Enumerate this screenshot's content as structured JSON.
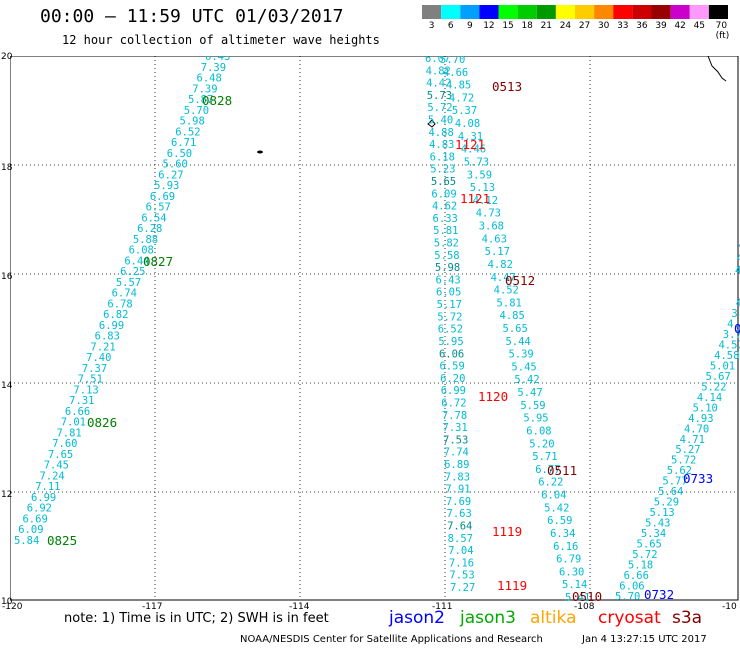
{
  "header": {
    "title": "00:00 – 11:59 UTC 01/03/2017",
    "subtitle": "12 hour collection of altimeter wave heights"
  },
  "colorbar": {
    "labels": [
      "3",
      "6",
      "9",
      "12",
      "15",
      "18",
      "21",
      "24",
      "27",
      "30",
      "33",
      "36",
      "39",
      "42",
      "45",
      "70 (ft)"
    ],
    "colors": [
      "#808080",
      "#00ffff",
      "#00a0ff",
      "#0000ff",
      "#00ff00",
      "#00cc00",
      "#009900",
      "#ffff00",
      "#ffcc00",
      "#ff8800",
      "#ff0000",
      "#cc0000",
      "#990000",
      "#cc00cc",
      "#ff99ff",
      "#000000"
    ]
  },
  "map": {
    "lat_labels": [
      "20",
      "18",
      "16",
      "14",
      "12",
      "10"
    ],
    "lon_labels": [
      "-120",
      "-117",
      "-114",
      "-111",
      "-108",
      "-10"
    ],
    "lon_range": [
      -120,
      -105
    ],
    "lat_range": [
      10,
      20
    ]
  },
  "tracks": {
    "t1": [
      "6.43",
      "7.39",
      "6.48",
      "7.39",
      "5.87",
      "5.70",
      "5.98",
      "6.52",
      "6.71",
      "6.50",
      "5.60",
      "6.27",
      "5.93",
      "6.69",
      "6.57",
      "6.54",
      "6.28",
      "5.88",
      "6.08",
      "6.44",
      "6.25",
      "5.57",
      "6.74",
      "6.78",
      "6.82",
      "6.99",
      "6.83",
      "7.21",
      "7.40",
      "7.37",
      "7.51",
      "7.13",
      "7.31",
      "6.66",
      "7.01",
      "7.81",
      "7.60",
      "7.65",
      "7.45",
      "7.24",
      "7.11",
      "6.99",
      "6.92",
      "6.69",
      "6.09",
      "5.84"
    ],
    "t2": [
      "6.07",
      "4.82",
      "4.42",
      "5.73",
      "5.72",
      "5.40",
      "4.88",
      "4.83",
      "6.18",
      "5.23",
      "5.65",
      "6.09",
      "4.62",
      "6.33",
      "5.81",
      "5.82",
      "5.58",
      "5.98",
      "6.43",
      "6.05",
      "5.17",
      "5.72",
      "6.52",
      "5.95",
      "6.06",
      "6.59",
      "6.20",
      "6.99",
      "6.72",
      "7.78",
      "7.31",
      "7.53",
      "7.74",
      "6.89",
      "7.83",
      "7.91",
      "7.69",
      "7.63",
      "7.64",
      "8.57",
      "7.04",
      "7.16",
      "7.53",
      "7.27"
    ],
    "t3": [
      "5.70",
      "4.66",
      "4.85",
      "4.72",
      "5.37",
      "4.08",
      "4.31",
      "4.46",
      "5.73",
      "3.59",
      "5.13",
      "4.12",
      "4.73",
      "3.68",
      "4.63",
      "5.17",
      "4.82",
      "4.47",
      "4.52",
      "5.81",
      "4.85",
      "5.65",
      "5.44",
      "5.39",
      "5.45",
      "5.42",
      "5.47",
      "5.59",
      "5.95",
      "6.08",
      "5.20",
      "5.71",
      "6.77",
      "6.22",
      "6.04",
      "5.42",
      "6.59",
      "6.34",
      "6.16",
      "6.79",
      "6.30",
      "5.14",
      "5.41"
    ],
    "t4": [
      "3.32",
      "4.51",
      "3.92",
      "4.32",
      "3.78",
      "4.57",
      "4.58",
      "5.01",
      "5.67",
      "5.22",
      "4.14",
      "5.10",
      "4.93",
      "4.70",
      "4.71",
      "5.27",
      "5.72",
      "5.62",
      "5.77",
      "5.64",
      "5.29",
      "5.13",
      "5.43",
      "5.34",
      "5.65",
      "5.72",
      "5.18",
      "6.66",
      "6.06",
      "5.70"
    ],
    "t5": [
      "4",
      "4",
      "4.1",
      "4.1"
    ]
  },
  "passes": [
    {
      "label": "0828",
      "color": "#008000"
    },
    {
      "label": "0827",
      "color": "#008000"
    },
    {
      "label": "0826",
      "color": "#008000"
    },
    {
      "label": "0825",
      "color": "#008000"
    },
    {
      "label": "0513",
      "color": "#800000"
    },
    {
      "label": "1121",
      "color": "#ff0000"
    },
    {
      "label": "1121",
      "color": "#ff0000"
    },
    {
      "label": "0512",
      "color": "#800000"
    },
    {
      "label": "1120",
      "color": "#ff0000"
    },
    {
      "label": "0511",
      "color": "#800000"
    },
    {
      "label": "1119",
      "color": "#ff0000"
    },
    {
      "label": "1119",
      "color": "#ff0000"
    },
    {
      "label": "0510",
      "color": "#800000"
    },
    {
      "label": "0732",
      "color": "#0000ff"
    },
    {
      "label": "0733",
      "color": "#0000ff"
    },
    {
      "label": "0",
      "color": "#0000ff"
    }
  ],
  "footer": {
    "note": "note:  1) Time is in UTC;  2) SWH is in feet",
    "missions": [
      {
        "name": "jason2",
        "color": "#0000ff"
      },
      {
        "name": "jason3",
        "color": "#00aa00"
      },
      {
        "name": "altika",
        "color": "#ffa500"
      },
      {
        "name": "cryosat",
        "color": "#ff0000"
      },
      {
        "name": "s3a",
        "color": "#800000"
      }
    ],
    "credit": "NOAA/NESDIS Center for Satellite Applications and Research",
    "stamp": "Jan  4 13:27:15 UTC 2017"
  },
  "colors": {
    "track_text": "#00bcd4",
    "track_dark": "#008b8b"
  }
}
